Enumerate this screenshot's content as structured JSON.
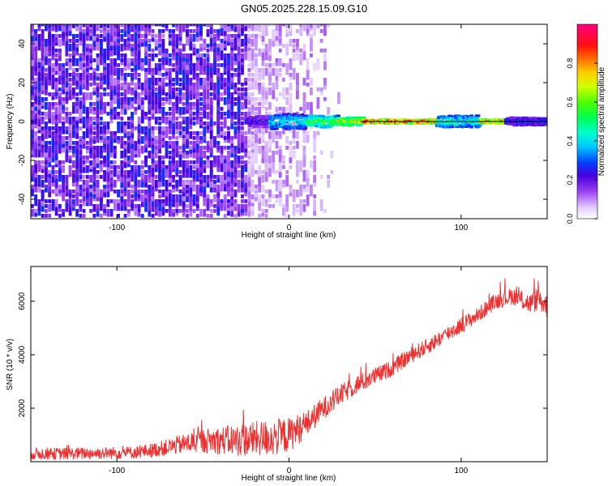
{
  "figure": {
    "title": "GN05.2025.228.15.09.G10"
  },
  "chart_data": [
    {
      "type": "heatmap",
      "xlabel": "Height of straight line (km)",
      "ylabel": "Frequency (Hz)",
      "xlim": [
        -150,
        150
      ],
      "ylim": [
        -50,
        50
      ],
      "xticks": [
        -100,
        0,
        100
      ],
      "yticks": [
        -40,
        -20,
        0,
        20,
        40
      ],
      "colorbar": {
        "label": "Normalized spectral amplitude",
        "range": [
          0,
          1
        ],
        "ticks": [
          0.0,
          0.2,
          0.4,
          0.6,
          0.8
        ],
        "tick_labels": [
          "0.0",
          "0.2",
          "0.4",
          "0.6",
          "0.8"
        ]
      },
      "horizontal_line_y": 0,
      "noise_profile": {
        "dense_until_x": -25,
        "fade_until_x": 30,
        "noise_color": "#7a1ee8",
        "noise_level": 0.2
      },
      "signal_band": [
        {
          "x0": -25,
          "x1": -12,
          "half_width_hz": 3,
          "amplitude": 0.25
        },
        {
          "x0": -12,
          "x1": 10,
          "half_width_hz": 4,
          "amplitude": 0.45
        },
        {
          "x0": 10,
          "x1": 28,
          "half_width_hz": 3,
          "amplitude": 0.6
        },
        {
          "x0": 28,
          "x1": 42,
          "half_width_hz": 2,
          "amplitude": 0.75
        },
        {
          "x0": 42,
          "x1": 85,
          "half_width_hz": 1,
          "amplitude": 0.95
        },
        {
          "x0": 85,
          "x1": 110,
          "half_width_hz": 3,
          "amplitude": 0.5
        },
        {
          "x0": 110,
          "x1": 125,
          "half_width_hz": 1,
          "amplitude": 0.9
        },
        {
          "x0": 125,
          "x1": 150,
          "half_width_hz": 2,
          "amplitude": 0.3
        }
      ]
    },
    {
      "type": "line",
      "xlabel": "Height of straight line (km)",
      "ylabel": "SNR (10 * v/v)",
      "xlim": [
        -150,
        150
      ],
      "ylim": [
        0,
        7300
      ],
      "xticks": [
        -100,
        0,
        100
      ],
      "yticks": [
        2000,
        4000,
        6000
      ],
      "series": [
        {
          "color": "#f03030",
          "x": [
            -150,
            -130,
            -110,
            -90,
            -80,
            -70,
            -60,
            -50,
            -40,
            -30,
            -20,
            -10,
            0,
            10,
            20,
            30,
            40,
            50,
            60,
            70,
            80,
            90,
            100,
            110,
            120,
            130,
            140,
            145,
            150
          ],
          "y": [
            300,
            300,
            320,
            350,
            420,
            550,
            680,
            780,
            800,
            800,
            850,
            900,
            1000,
            1400,
            2000,
            2500,
            2900,
            3200,
            3500,
            3950,
            4300,
            4700,
            5100,
            5500,
            6000,
            6200,
            5900,
            6100,
            5800
          ],
          "spread": [
            220,
            220,
            220,
            230,
            260,
            300,
            380,
            450,
            520,
            600,
            650,
            700,
            650,
            500,
            420,
            380,
            350,
            320,
            300,
            300,
            300,
            300,
            300,
            280,
            300,
            320,
            380,
            450,
            420
          ]
        }
      ]
    }
  ]
}
